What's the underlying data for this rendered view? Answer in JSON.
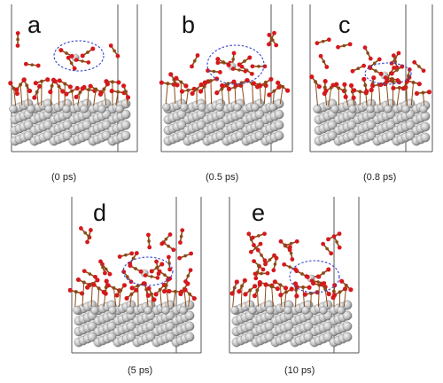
{
  "figure": {
    "panels": [
      {
        "id": "a",
        "letter": "a",
        "time": "(0 ps)"
      },
      {
        "id": "b",
        "letter": "b",
        "time": "(0.5 ps)"
      },
      {
        "id": "c",
        "letter": "c",
        "time": "(0.8 ps)"
      },
      {
        "id": "d",
        "letter": "d",
        "time": "(5 ps)"
      },
      {
        "id": "e",
        "letter": "e",
        "time": "(10 ps)"
      }
    ],
    "colors": {
      "oxygen": "#d4191c",
      "carbon": "#8a4b17",
      "metal": "#b8b8b8",
      "metal_dark": "#7a7a7a",
      "highlight_ellipse": "#3344cc",
      "cell_border": "#555555"
    }
  }
}
